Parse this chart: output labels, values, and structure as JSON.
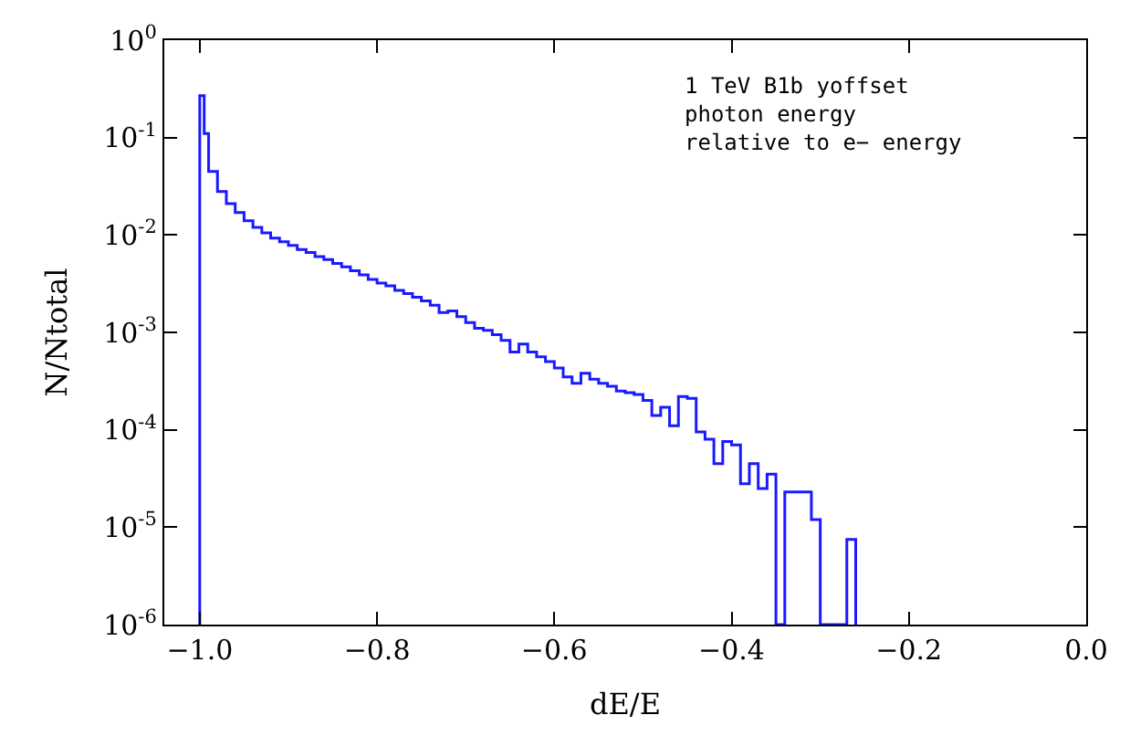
{
  "chart_data": {
    "type": "histogram",
    "xlabel": "dE/E",
    "ylabel": "N/Ntotal",
    "log": "y",
    "color": "#1a1aff",
    "annotations": [
      "1 TeV B1b yoffset\nphoton energy\nrelative to e− energy"
    ],
    "bins": [
      -1.0,
      -0.995,
      -0.99,
      -0.98,
      -0.97,
      -0.96,
      -0.95,
      -0.94,
      -0.93,
      -0.92,
      -0.91,
      -0.9,
      -0.89,
      -0.88,
      -0.87,
      -0.86,
      -0.85,
      -0.84,
      -0.83,
      -0.82,
      -0.81,
      -0.8,
      -0.79,
      -0.78,
      -0.77,
      -0.76,
      -0.75,
      -0.74,
      -0.73,
      -0.72,
      -0.71,
      -0.7,
      -0.69,
      -0.68,
      -0.67,
      -0.66,
      -0.65,
      -0.64,
      -0.63,
      -0.62,
      -0.61,
      -0.6,
      -0.59,
      -0.58,
      -0.57,
      -0.56,
      -0.55,
      -0.54,
      -0.53,
      -0.52,
      -0.51,
      -0.5,
      -0.49,
      -0.48,
      -0.47,
      -0.46,
      -0.45,
      -0.44,
      -0.43,
      -0.42,
      -0.41,
      -0.4,
      -0.39,
      -0.38,
      -0.37,
      -0.36,
      -0.35,
      -0.34,
      -0.33,
      -0.32,
      -0.31,
      -0.3,
      -0.29,
      -0.28,
      -0.27,
      -0.26
    ],
    "values": [
      0.27,
      0.11,
      0.045,
      0.028,
      0.021,
      0.017,
      0.014,
      0.012,
      0.0105,
      0.0093,
      0.0085,
      0.0078,
      0.0071,
      0.0066,
      0.006,
      0.0056,
      0.0051,
      0.0047,
      0.0043,
      0.0039,
      0.0035,
      0.0032,
      0.003,
      0.0027,
      0.0025,
      0.0023,
      0.0021,
      0.0019,
      0.0016,
      0.00166,
      0.00145,
      0.00126,
      0.0011,
      0.00105,
      0.00095,
      0.00083,
      0.00063,
      0.00076,
      0.00063,
      0.00056,
      0.0005,
      0.00043,
      0.00035,
      0.0003,
      0.00038,
      0.00033,
      0.0003,
      0.00028,
      0.00025,
      0.00024,
      0.00023,
      0.0002,
      0.00014,
      0.00017,
      0.00011,
      0.00022,
      0.00021,
      9.5e-05,
      8e-05,
      4.5e-05,
      7.6e-05,
      7e-05,
      2.8e-05,
      4.5e-05,
      2.5e-05,
      3.5e-05,
      null,
      2.3e-05,
      2.3e-05,
      2.3e-05,
      1.2e-05,
      null,
      null,
      null,
      7.5e-06
    ],
    "xlim": [
      -1.04,
      0.0
    ],
    "xticks": [
      {
        "value": -1.0,
        "label": "−1.0"
      },
      {
        "value": -0.8,
        "label": "−0.8"
      },
      {
        "value": -0.6,
        "label": "−0.6"
      },
      {
        "value": -0.4,
        "label": "−0.4"
      },
      {
        "value": -0.2,
        "label": "−0.2"
      },
      {
        "value": 0.0,
        "label": "0.0"
      }
    ],
    "ylim": [
      1e-06,
      1
    ],
    "yticks": [
      {
        "value": 1,
        "label": "10$^{0}$"
      },
      {
        "value": 0.1,
        "label": "10$^{-1}$"
      },
      {
        "value": 0.01,
        "label": "10$^{-2}$"
      },
      {
        "value": 0.001,
        "label": "10$^{-3}$"
      },
      {
        "value": 0.0001,
        "label": "10$^{-4}$"
      },
      {
        "value": 1e-05,
        "label": "10$^{-5}$"
      },
      {
        "value": 1e-06,
        "label": "10$^{-6}$"
      }
    ]
  }
}
